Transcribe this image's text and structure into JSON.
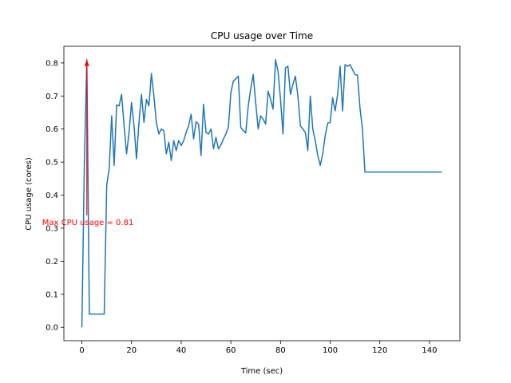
{
  "chart_data": {
    "type": "line",
    "title": "CPU usage over Time",
    "xlabel": "Time (sec)",
    "ylabel": "CPU usage (cores)",
    "xlim": [
      -7.25,
      152.25
    ],
    "ylim": [
      -0.0405,
      0.8505
    ],
    "xticks": [
      0,
      20,
      40,
      60,
      80,
      100,
      120,
      140
    ],
    "yticks": [
      0.0,
      0.1,
      0.2,
      0.3,
      0.4,
      0.5,
      0.6,
      0.7,
      0.8
    ],
    "xtick_labels": [
      "0",
      "20",
      "40",
      "60",
      "80",
      "100",
      "120",
      "140"
    ],
    "ytick_labels": [
      "0.0",
      "0.1",
      "0.2",
      "0.3",
      "0.4",
      "0.5",
      "0.6",
      "0.7",
      "0.8"
    ],
    "grid": false,
    "line_color": "#1f77b4",
    "annotation": {
      "text": "Max CPU usage = 0.81",
      "color": "#ff0000",
      "point": [
        2,
        0.81
      ],
      "text_anchor": [
        -16,
        0.31
      ]
    },
    "series": [
      {
        "name": "CPU usage",
        "x": [
          0,
          1,
          2,
          3,
          4,
          5,
          6,
          7,
          8,
          9,
          10,
          11,
          12,
          13,
          14,
          15,
          16,
          17,
          18,
          19,
          20,
          21,
          22,
          23,
          24,
          25,
          26,
          27,
          28,
          29,
          30,
          31,
          32,
          33,
          34,
          35,
          36,
          37,
          38,
          39,
          40,
          41,
          42,
          43,
          44,
          45,
          46,
          47,
          48,
          49,
          50,
          51,
          52,
          53,
          54,
          55,
          56,
          57,
          58,
          59,
          60,
          61,
          62,
          63,
          64,
          65,
          66,
          67,
          68,
          69,
          70,
          71,
          72,
          73,
          74,
          75,
          76,
          77,
          78,
          79,
          80,
          81,
          82,
          83,
          84,
          85,
          86,
          87,
          88,
          89,
          90,
          91,
          92,
          93,
          94,
          95,
          96,
          97,
          98,
          99,
          100,
          101,
          102,
          103,
          104,
          105,
          106,
          107,
          108,
          109,
          110,
          111,
          112,
          113,
          114,
          115,
          116,
          117,
          118,
          119,
          120,
          121,
          122,
          123,
          124,
          125,
          126,
          127,
          128,
          129,
          130,
          131,
          132,
          133,
          134,
          135,
          136,
          137,
          138,
          139,
          140,
          141,
          142,
          143,
          144,
          145
        ],
        "values": [
          0.0,
          0.5,
          0.81,
          0.04,
          0.04,
          0.04,
          0.04,
          0.04,
          0.04,
          0.04,
          0.43,
          0.48,
          0.64,
          0.49,
          0.673,
          0.67,
          0.705,
          0.61,
          0.525,
          0.59,
          0.68,
          0.61,
          0.51,
          0.62,
          0.705,
          0.62,
          0.69,
          0.67,
          0.768,
          0.7,
          0.62,
          0.585,
          0.6,
          0.595,
          0.525,
          0.56,
          0.505,
          0.565,
          0.535,
          0.565,
          0.55,
          0.565,
          0.59,
          0.61,
          0.645,
          0.57,
          0.622,
          0.615,
          0.52,
          0.675,
          0.59,
          0.585,
          0.6,
          0.54,
          0.575,
          0.54,
          0.552,
          0.57,
          0.585,
          0.605,
          0.71,
          0.745,
          0.752,
          0.76,
          0.605,
          0.595,
          0.588,
          0.67,
          0.722,
          0.765,
          0.68,
          0.6,
          0.64,
          0.63,
          0.615,
          0.715,
          0.69,
          0.66,
          0.81,
          0.775,
          0.69,
          0.585,
          0.785,
          0.79,
          0.705,
          0.735,
          0.76,
          0.7,
          0.61,
          0.6,
          0.59,
          0.535,
          0.7,
          0.6,
          0.565,
          0.52,
          0.49,
          0.525,
          0.58,
          0.618,
          0.62,
          0.695,
          0.655,
          0.705,
          0.79,
          0.655,
          0.795,
          0.79,
          0.795,
          0.78,
          0.765,
          0.763,
          0.665,
          0.6,
          0.47,
          0.47,
          0.47,
          0.47,
          0.47,
          0.47,
          0.47,
          0.47,
          0.47,
          0.47,
          0.47,
          0.47,
          0.47,
          0.47,
          0.47,
          0.47,
          0.47,
          0.47,
          0.47,
          0.47,
          0.47,
          0.47,
          0.47,
          0.47,
          0.47,
          0.47,
          0.47,
          0.47,
          0.47,
          0.47,
          0.47,
          0.47
        ]
      }
    ]
  }
}
